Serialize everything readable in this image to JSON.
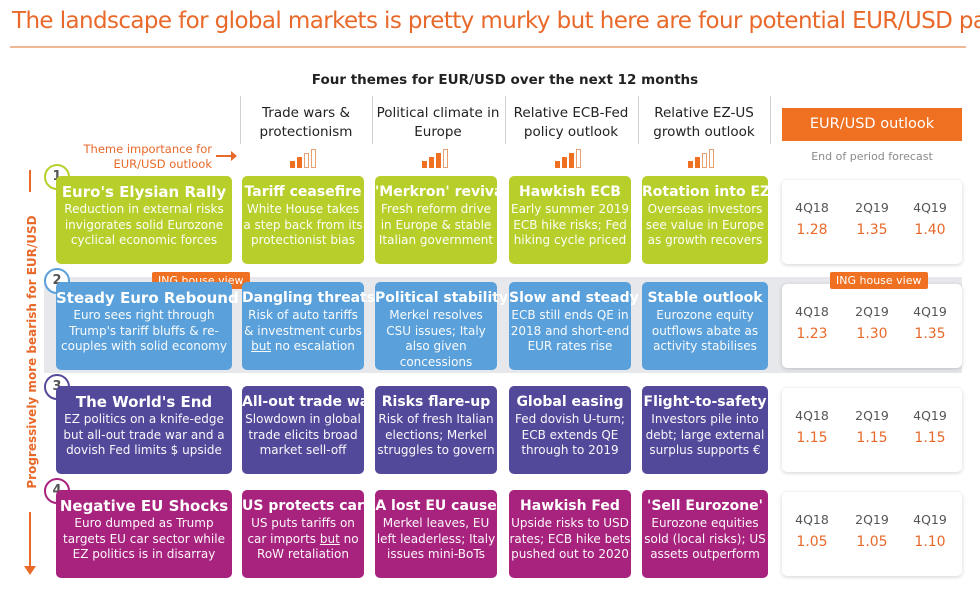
{
  "title": "The landscape for global markets is pretty murky but here are four potential EUR/USD paths",
  "subtitle": "Four themes for EUR/USD over the next 12 months",
  "themes": [
    {
      "label": "Trade wars & protectionism",
      "importance": 2
    },
    {
      "label": "Political climate in Europe",
      "importance": 3
    },
    {
      "label": "Relative ECB-Fed policy outlook",
      "importance": 3
    },
    {
      "label": "Relative EZ-US growth outlook",
      "importance": 2
    }
  ],
  "importance_label": "Theme importance for EUR/USD outlook",
  "side_label": "Progressively more bearish for EUR/USD",
  "outlook": {
    "header": "EUR/USD outlook",
    "subheader": "End of period forecast",
    "quarters": [
      "4Q18",
      "2Q19",
      "4Q19"
    ]
  },
  "house_view_label": "ING house view",
  "colors": {
    "accent": "#ee7020",
    "s1": "#b8cf2b",
    "s2": "#5aa0da",
    "s3": "#53499a",
    "s4": "#a8237e",
    "band": "#e6e8ec"
  },
  "scenarios": [
    {
      "number": "1",
      "name": "Euro's Elysian Rally",
      "desc": "Reduction in external risks invigorates solid Eurozone cyclical economic forces",
      "cells": [
        {
          "title": "Tariff ceasefire",
          "desc": "White House takes a step back from its protectionist bias"
        },
        {
          "title": "'Merkron' revival",
          "desc": "Fresh reform drive in Europe & stable Italian government"
        },
        {
          "title": "Hawkish ECB",
          "desc": "Early summer 2019 ECB hike risks; Fed hiking cycle priced"
        },
        {
          "title": "Rotation into EZ",
          "desc": "Overseas investors see value in Europe as growth recovers"
        }
      ],
      "forecast": [
        "1.28",
        "1.35",
        "1.40"
      ]
    },
    {
      "number": "2",
      "name": "Steady Euro Rebound",
      "desc": "Euro sees right through Trump's tariff bluffs & re-couples with solid economy",
      "cells": [
        {
          "title": "Dangling threats",
          "desc_pre": "Risk of auto tariffs & investment curbs ",
          "desc_u": "but",
          "desc_post": " no escalation"
        },
        {
          "title": "Political stability",
          "desc": "Merkel resolves CSU issues; Italy also given concessions"
        },
        {
          "title": "Slow and steady",
          "desc": "ECB still ends QE in 2018 and short-end EUR rates rise"
        },
        {
          "title": "Stable outlook",
          "desc": "Eurozone equity outflows abate as activity stabilises"
        }
      ],
      "forecast": [
        "1.23",
        "1.30",
        "1.35"
      ]
    },
    {
      "number": "3",
      "name": "The World's End",
      "desc": "EZ politics on a knife-edge but all-out trade war and a dovish Fed limits $ upside",
      "cells": [
        {
          "title": "All-out trade war",
          "desc": "Slowdown in global trade elicits broad market sell-off"
        },
        {
          "title": "Risks flare-up",
          "desc": "Risk of fresh Italian elections; Merkel struggles to govern"
        },
        {
          "title": "Global easing",
          "desc": "Fed dovish U-turn; ECB extends QE through to 2019"
        },
        {
          "title": "Flight-to-safety",
          "desc": "Investors pile into debt; large external surplus supports €"
        }
      ],
      "forecast": [
        "1.15",
        "1.15",
        "1.15"
      ]
    },
    {
      "number": "4",
      "name": "Negative EU Shocks",
      "desc": "Euro dumped as Trump targets EU car sector while EZ politics is in disarray",
      "cells": [
        {
          "title": "US protects cars",
          "desc_pre": "US puts tariffs on car imports ",
          "desc_u": "but",
          "desc_post": " no RoW retaliation"
        },
        {
          "title": "A lost EU cause",
          "desc": "Merkel leaves, EU left leaderless; Italy issues mini-BoTs"
        },
        {
          "title": "Hawkish Fed",
          "desc": "Upside risks to USD rates; ECB hike bets pushed out to 2020"
        },
        {
          "title": "'Sell Eurozone'",
          "desc": "Eurozone equities sold (local risks); US assets outperform"
        }
      ],
      "forecast": [
        "1.05",
        "1.05",
        "1.10"
      ]
    }
  ]
}
